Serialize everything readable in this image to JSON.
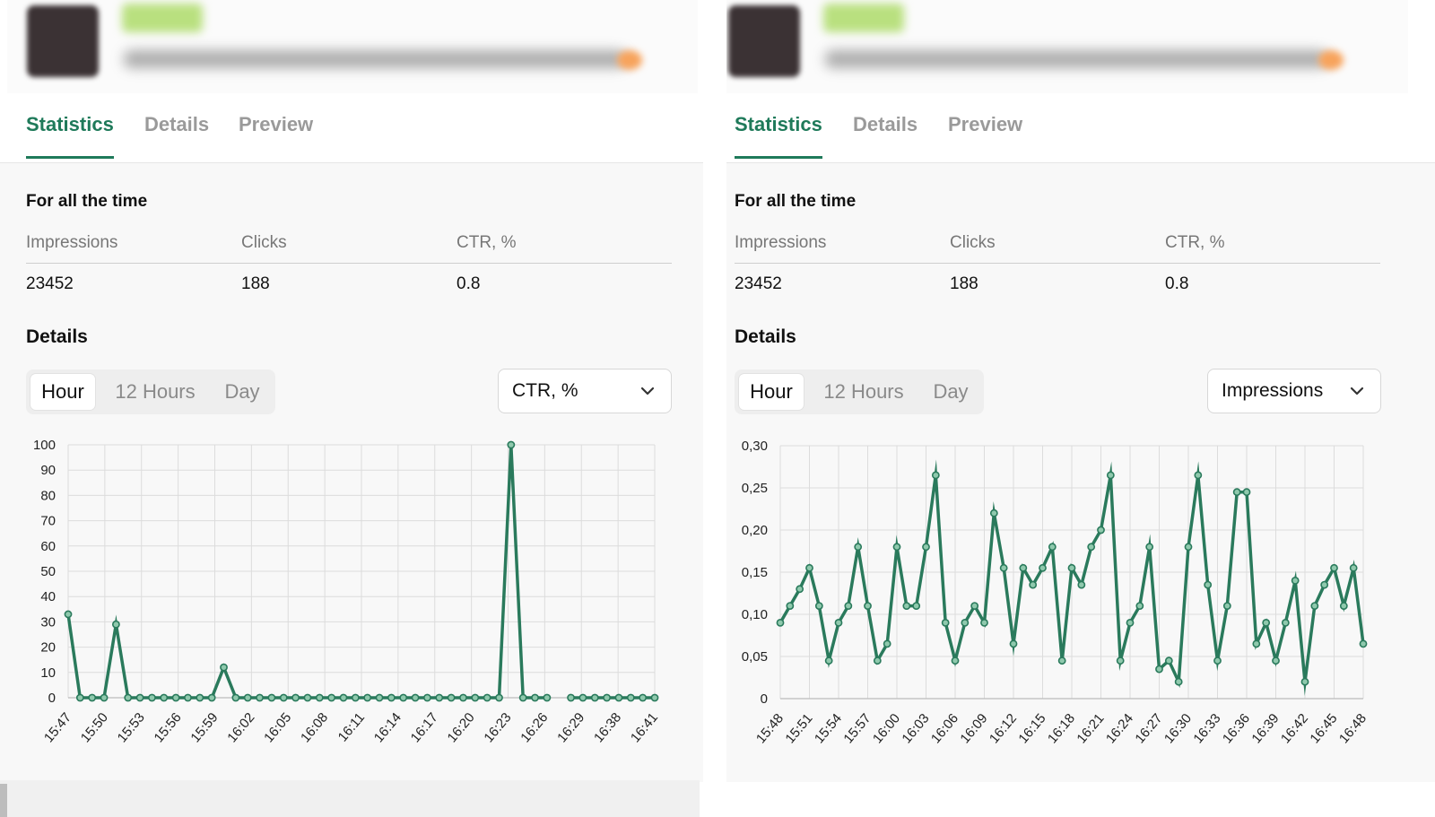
{
  "colors": {
    "accent": "#1f7a5a",
    "line": "#2a7a5c",
    "muted": "#9a9a9a"
  },
  "panels": [
    {
      "tabs": [
        {
          "label": "Statistics",
          "active": true
        },
        {
          "label": "Details",
          "active": false
        },
        {
          "label": "Preview",
          "active": false
        }
      ],
      "summary": {
        "title": "For all the time",
        "headers": [
          "Impressions",
          "Clicks",
          "CTR, %"
        ],
        "values": [
          "23452",
          "188",
          "0.8"
        ]
      },
      "details_title": "Details",
      "periods": [
        {
          "label": "Hour",
          "active": true
        },
        {
          "label": "12 Hours",
          "active": false
        },
        {
          "label": "Day",
          "active": false
        }
      ],
      "metric_select": {
        "value": "CTR, %",
        "icon": "chevron-down-icon"
      },
      "chart_data": {
        "type": "line",
        "title": "",
        "xlabel": "",
        "ylabel": "",
        "ylim": [
          0,
          100
        ],
        "yticks": [
          "0",
          "10",
          "20",
          "30",
          "40",
          "50",
          "60",
          "70",
          "80",
          "90",
          "100"
        ],
        "grid": true,
        "x_tick_labels": [
          "15:47",
          "15:50",
          "15:53",
          "15:56",
          "15:59",
          "16:02",
          "16:05",
          "16:08",
          "16:11",
          "16:14",
          "16:17",
          "16:20",
          "16:23",
          "16:26",
          "16:29",
          "16:38",
          "16:41"
        ],
        "series": [
          {
            "values": [
              33,
              0,
              0,
              0,
              29,
              0,
              0,
              0,
              0,
              0,
              0,
              0,
              0,
              12,
              0,
              0,
              0,
              0,
              0,
              0,
              0,
              0,
              0,
              0,
              0,
              0,
              0,
              0,
              0,
              0,
              0,
              0,
              0,
              0,
              0,
              0,
              0,
              100,
              0,
              0,
              0,
              null,
              0,
              0,
              0,
              0,
              0,
              0,
              0,
              0
            ]
          }
        ]
      }
    },
    {
      "tabs": [
        {
          "label": "Statistics",
          "active": true
        },
        {
          "label": "Details",
          "active": false
        },
        {
          "label": "Preview",
          "active": false
        }
      ],
      "summary": {
        "title": "For all the time",
        "headers": [
          "Impressions",
          "Clicks",
          "CTR, %"
        ],
        "values": [
          "23452",
          "188",
          "0.8"
        ]
      },
      "details_title": "Details",
      "periods": [
        {
          "label": "Hour",
          "active": true
        },
        {
          "label": "12 Hours",
          "active": false
        },
        {
          "label": "Day",
          "active": false
        }
      ],
      "metric_select": {
        "value": "Impressions",
        "icon": "chevron-down-icon"
      },
      "chart_data": {
        "type": "line",
        "title": "",
        "xlabel": "",
        "ylabel": "",
        "ylim": [
          0,
          0.3
        ],
        "yticks": [
          "0",
          "0,05",
          "0,10",
          "0,15",
          "0,20",
          "0,25",
          "0,30"
        ],
        "grid": true,
        "x_tick_labels": [
          "15:48",
          "15:51",
          "15:54",
          "15:57",
          "16:00",
          "16:03",
          "16:06",
          "16:09",
          "16:12",
          "16:15",
          "16:18",
          "16:21",
          "16:24",
          "16:27",
          "16:30",
          "16:33",
          "16:36",
          "16:39",
          "16:42",
          "16:45",
          "16:48"
        ],
        "series": [
          {
            "values": [
              0.09,
              0.11,
              0.13,
              0.155,
              0.11,
              0.045,
              0.09,
              0.11,
              0.18,
              0.11,
              0.045,
              0.065,
              0.18,
              0.11,
              0.11,
              0.18,
              0.265,
              0.09,
              0.045,
              0.09,
              0.11,
              0.09,
              0.22,
              0.155,
              0.065,
              0.155,
              0.135,
              0.155,
              0.18,
              0.045,
              0.155,
              0.135,
              0.18,
              0.2,
              0.265,
              0.045,
              0.09,
              0.11,
              0.18,
              0.035,
              0.045,
              0.02,
              0.18,
              0.265,
              0.135,
              0.045,
              0.11,
              0.245,
              0.245,
              0.065,
              0.09,
              0.045,
              0.09,
              0.14,
              0.02,
              0.11,
              0.135,
              0.155,
              0.11,
              0.155,
              0.065
            ]
          }
        ]
      }
    }
  ]
}
